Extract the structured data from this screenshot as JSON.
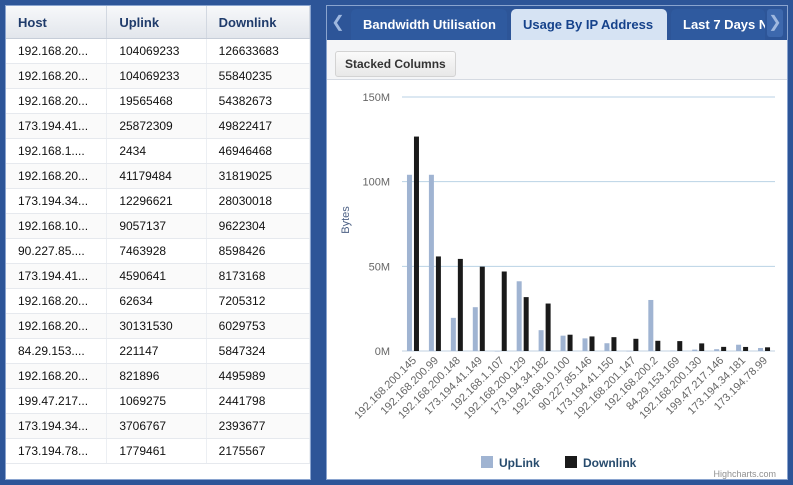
{
  "grid": {
    "columns": [
      "Host",
      "Uplink",
      "Downlink"
    ],
    "rows": [
      [
        "192.168.20...",
        "104069233",
        "126633683"
      ],
      [
        "192.168.20...",
        "104069233",
        "55840235"
      ],
      [
        "192.168.20...",
        "19565468",
        "54382673"
      ],
      [
        "173.194.41...",
        "25872309",
        "49822417"
      ],
      [
        "192.168.1....",
        "2434",
        "46946468"
      ],
      [
        "192.168.20...",
        "41179484",
        "31819025"
      ],
      [
        "173.194.34...",
        "12296621",
        "28030018"
      ],
      [
        "192.168.10...",
        "9057137",
        "9622304"
      ],
      [
        "90.227.85....",
        "7463928",
        "8598426"
      ],
      [
        "173.194.41...",
        "4590641",
        "8173168"
      ],
      [
        "192.168.20...",
        "62634",
        "7205312"
      ],
      [
        "192.168.20...",
        "30131530",
        "6029753"
      ],
      [
        "84.29.153....",
        "221147",
        "5847324"
      ],
      [
        "192.168.20...",
        "821896",
        "4495989"
      ],
      [
        "199.47.217...",
        "1069275",
        "2441798"
      ],
      [
        "173.194.34...",
        "3706767",
        "2393677"
      ],
      [
        "173.194.78...",
        "1779461",
        "2175567"
      ]
    ]
  },
  "tabs": [
    {
      "label": "Bandwidth Utilisation",
      "active": false
    },
    {
      "label": "Usage By IP Address",
      "active": true
    },
    {
      "label": "Last 7 Days N",
      "active": false
    }
  ],
  "toolbar": {
    "stacked_label": "Stacked Columns"
  },
  "icons": {
    "tab_left": "chevron-left-icon",
    "tab_right": "chevron-right-icon"
  },
  "credit": "Highcharts.com",
  "chart_data": {
    "type": "bar",
    "title": "",
    "ylabel": "Bytes",
    "ylim": [
      0,
      150000000
    ],
    "yticks": [
      0,
      50000000,
      100000000,
      150000000
    ],
    "ytick_labels": [
      "0M",
      "50M",
      "100M",
      "150M"
    ],
    "categories": [
      "192.168.200.145",
      "192.168.200.99",
      "192.168.200.148",
      "173.194.41.149",
      "192.168.1.107",
      "192.168.200.129",
      "173.194.34.182",
      "192.168.10.100",
      "90.227.85.146",
      "173.194.41.150",
      "192.168.201.147",
      "192.168.200.2",
      "84.29.153.169",
      "192.168.200.130",
      "199.47.217.146",
      "173.194.34.181",
      "173.194.78.99"
    ],
    "series": [
      {
        "name": "UpLink",
        "color": "#a0b4d2",
        "values": [
          104069233,
          104069233,
          19565468,
          25872309,
          2434,
          41179484,
          12296621,
          9057137,
          7463928,
          4590641,
          62634,
          30131530,
          221147,
          821896,
          1069275,
          3706767,
          1779461
        ]
      },
      {
        "name": "Downlink",
        "color": "#1a1a1a",
        "values": [
          126633683,
          55840235,
          54382673,
          49822417,
          46946468,
          31819025,
          28030018,
          9622304,
          8598426,
          8173168,
          7205312,
          6029753,
          5847324,
          4495989,
          2441798,
          2393677,
          2175567
        ]
      }
    ],
    "grid": true,
    "legend": "bottom-center"
  }
}
